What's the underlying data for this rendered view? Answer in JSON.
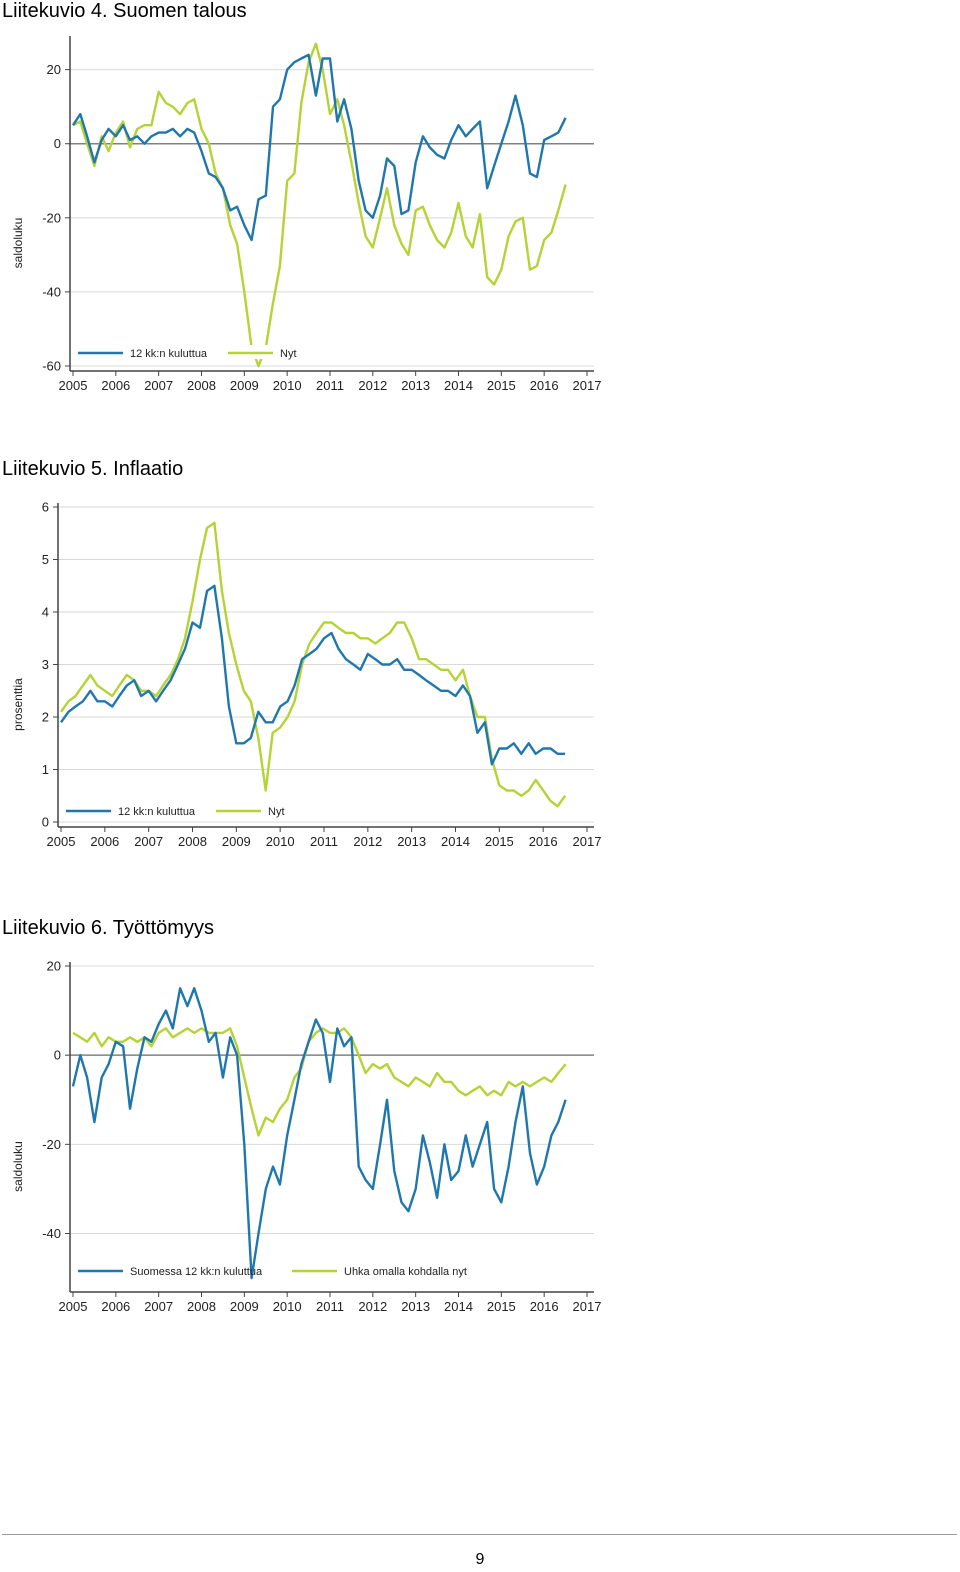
{
  "colors": {
    "series1": "#1f77ad",
    "series2": "#b5d334",
    "grid": "#d9d9d9",
    "zero": "#808080",
    "axis": "#444444"
  },
  "page_number": "9",
  "chart_data": [
    {
      "type": "line",
      "title": "Liitekuvio 4. Suomen talous",
      "ylabel": "saldoluku",
      "xlim": [
        2005,
        2017
      ],
      "ylim": [
        -60,
        28
      ],
      "xticks": [
        "2005",
        "2006",
        "2007",
        "2008",
        "2009",
        "2010",
        "2011",
        "2012",
        "2013",
        "2014",
        "2015",
        "2016",
        "2017"
      ],
      "yticks": [
        20,
        0,
        -20,
        -40,
        -60
      ],
      "legend_position": "bottom-left",
      "series": [
        {
          "name": "12 kk:n kuluttua",
          "color": "#1f77ad",
          "x": [
            2005.0,
            2005.17,
            2005.33,
            2005.5,
            2005.67,
            2005.83,
            2006.0,
            2006.17,
            2006.33,
            2006.5,
            2006.67,
            2006.83,
            2007.0,
            2007.17,
            2007.33,
            2007.5,
            2007.67,
            2007.83,
            2008.0,
            2008.17,
            2008.33,
            2008.5,
            2008.67,
            2008.83,
            2009.0,
            2009.17,
            2009.33,
            2009.5,
            2009.67,
            2009.83,
            2010.0,
            2010.17,
            2010.33,
            2010.5,
            2010.67,
            2010.83,
            2011.0,
            2011.17,
            2011.33,
            2011.5,
            2011.67,
            2011.83,
            2012.0,
            2012.17,
            2012.33,
            2012.5,
            2012.67,
            2012.83,
            2013.0,
            2013.17,
            2013.33,
            2013.5,
            2013.67,
            2013.83,
            2014.0,
            2014.17,
            2014.33,
            2014.5,
            2014.67,
            2014.83,
            2015.0,
            2015.17,
            2015.33,
            2015.5,
            2015.67,
            2015.83,
            2016.0,
            2016.17,
            2016.33,
            2016.5
          ],
          "y": [
            5,
            8,
            2,
            -5,
            1,
            4,
            2,
            5,
            1,
            2,
            0,
            2,
            3,
            3,
            4,
            2,
            4,
            3,
            -2,
            -8,
            -9,
            -12,
            -18,
            -17,
            -22,
            -26,
            -15,
            -14,
            10,
            12,
            20,
            22,
            23,
            24,
            13,
            23,
            23,
            6,
            12,
            4,
            -10,
            -18,
            -20,
            -14,
            -4,
            -6,
            -19,
            -18,
            -5,
            2,
            -1,
            -3,
            -4,
            1,
            5,
            2,
            4,
            6,
            -12,
            -6,
            0,
            6,
            13,
            5,
            -8,
            -9,
            1,
            2,
            3,
            7
          ]
        },
        {
          "name": "Nyt",
          "color": "#b5d334",
          "x": [
            2005.0,
            2005.17,
            2005.33,
            2005.5,
            2005.67,
            2005.83,
            2006.0,
            2006.17,
            2006.33,
            2006.5,
            2006.67,
            2006.83,
            2007.0,
            2007.17,
            2007.33,
            2007.5,
            2007.67,
            2007.83,
            2008.0,
            2008.17,
            2008.33,
            2008.5,
            2008.67,
            2008.83,
            2009.0,
            2009.17,
            2009.33,
            2009.5,
            2009.67,
            2009.83,
            2010.0,
            2010.17,
            2010.33,
            2010.5,
            2010.67,
            2010.83,
            2011.0,
            2011.17,
            2011.33,
            2011.5,
            2011.67,
            2011.83,
            2012.0,
            2012.17,
            2012.33,
            2012.5,
            2012.67,
            2012.83,
            2013.0,
            2013.17,
            2013.33,
            2013.5,
            2013.67,
            2013.83,
            2014.0,
            2014.17,
            2014.33,
            2014.5,
            2014.67,
            2014.83,
            2015.0,
            2015.17,
            2015.33,
            2015.5,
            2015.67,
            2015.83,
            2016.0,
            2016.17,
            2016.33,
            2016.5
          ],
          "y": [
            5,
            6,
            0,
            -6,
            2,
            -2,
            3,
            6,
            -1,
            4,
            5,
            5,
            14,
            11,
            10,
            8,
            11,
            12,
            4,
            0,
            -8,
            -12,
            -22,
            -27,
            -40,
            -55,
            -60,
            -55,
            -43,
            -33,
            -10,
            -8,
            11,
            22,
            27,
            20,
            8,
            12,
            5,
            -5,
            -16,
            -25,
            -28,
            -20,
            -12,
            -22,
            -27,
            -30,
            -18,
            -17,
            -22,
            -26,
            -28,
            -24,
            -16,
            -25,
            -28,
            -19,
            -36,
            -38,
            -34,
            -25,
            -21,
            -20,
            -34,
            -33,
            -26,
            -24,
            -18,
            -11
          ]
        }
      ]
    },
    {
      "type": "line",
      "title": "Liitekuvio 5. Inflaatio",
      "ylabel": "prosenttia",
      "xlim": [
        2005,
        2017
      ],
      "ylim": [
        0,
        6
      ],
      "xticks": [
        "2005",
        "2006",
        "2007",
        "2008",
        "2009",
        "2010",
        "2011",
        "2012",
        "2013",
        "2014",
        "2015",
        "2016",
        "2017"
      ],
      "yticks": [
        6,
        5,
        4,
        3,
        2,
        1,
        0
      ],
      "legend_position": "bottom-left",
      "series": [
        {
          "name": "12 kk:n kuluttua",
          "color": "#1f77ad",
          "x": [
            2005.0,
            2005.17,
            2005.33,
            2005.5,
            2005.67,
            2005.83,
            2006.0,
            2006.17,
            2006.33,
            2006.5,
            2006.67,
            2006.83,
            2007.0,
            2007.17,
            2007.33,
            2007.5,
            2007.67,
            2007.83,
            2008.0,
            2008.17,
            2008.33,
            2008.5,
            2008.67,
            2008.83,
            2009.0,
            2009.17,
            2009.33,
            2009.5,
            2009.67,
            2009.83,
            2010.0,
            2010.17,
            2010.33,
            2010.5,
            2010.67,
            2010.83,
            2011.0,
            2011.17,
            2011.33,
            2011.5,
            2011.67,
            2011.83,
            2012.0,
            2012.17,
            2012.33,
            2012.5,
            2012.67,
            2012.83,
            2013.0,
            2013.17,
            2013.33,
            2013.5,
            2013.67,
            2013.83,
            2014.0,
            2014.17,
            2014.33,
            2014.5,
            2014.67,
            2014.83,
            2015.0,
            2015.17,
            2015.33,
            2015.5,
            2015.67,
            2015.83,
            2016.0,
            2016.17,
            2016.33,
            2016.5
          ],
          "y": [
            1.9,
            2.1,
            2.2,
            2.3,
            2.5,
            2.3,
            2.3,
            2.2,
            2.4,
            2.6,
            2.7,
            2.4,
            2.5,
            2.3,
            2.5,
            2.7,
            3.0,
            3.3,
            3.8,
            3.7,
            4.4,
            4.5,
            3.5,
            2.2,
            1.5,
            1.5,
            1.6,
            2.1,
            1.9,
            1.9,
            2.2,
            2.3,
            2.6,
            3.1,
            3.2,
            3.3,
            3.5,
            3.6,
            3.3,
            3.1,
            3.0,
            2.9,
            3.2,
            3.1,
            3.0,
            3.0,
            3.1,
            2.9,
            2.9,
            2.8,
            2.7,
            2.6,
            2.5,
            2.5,
            2.4,
            2.6,
            2.4,
            1.7,
            1.9,
            1.1,
            1.4,
            1.4,
            1.5,
            1.3,
            1.5,
            1.3,
            1.4,
            1.4,
            1.3,
            1.3
          ]
        },
        {
          "name": "Nyt",
          "color": "#b5d334",
          "x": [
            2005.0,
            2005.17,
            2005.33,
            2005.5,
            2005.67,
            2005.83,
            2006.0,
            2006.17,
            2006.33,
            2006.5,
            2006.67,
            2006.83,
            2007.0,
            2007.17,
            2007.33,
            2007.5,
            2007.67,
            2007.83,
            2008.0,
            2008.17,
            2008.33,
            2008.5,
            2008.67,
            2008.83,
            2009.0,
            2009.17,
            2009.33,
            2009.5,
            2009.67,
            2009.83,
            2010.0,
            2010.17,
            2010.33,
            2010.5,
            2010.67,
            2010.83,
            2011.0,
            2011.17,
            2011.33,
            2011.5,
            2011.67,
            2011.83,
            2012.0,
            2012.17,
            2012.33,
            2012.5,
            2012.67,
            2012.83,
            2013.0,
            2013.17,
            2013.33,
            2013.5,
            2013.67,
            2013.83,
            2014.0,
            2014.17,
            2014.33,
            2014.5,
            2014.67,
            2014.83,
            2015.0,
            2015.17,
            2015.33,
            2015.5,
            2015.67,
            2015.83,
            2016.0,
            2016.17,
            2016.33,
            2016.5
          ],
          "y": [
            2.1,
            2.3,
            2.4,
            2.6,
            2.8,
            2.6,
            2.5,
            2.4,
            2.6,
            2.8,
            2.7,
            2.5,
            2.5,
            2.4,
            2.6,
            2.8,
            3.1,
            3.5,
            4.2,
            5.0,
            5.6,
            5.7,
            4.4,
            3.6,
            3.0,
            2.5,
            2.3,
            1.6,
            0.6,
            1.7,
            1.8,
            2.0,
            2.3,
            3.0,
            3.4,
            3.6,
            3.8,
            3.8,
            3.7,
            3.6,
            3.6,
            3.5,
            3.5,
            3.4,
            3.5,
            3.6,
            3.8,
            3.8,
            3.5,
            3.1,
            3.1,
            3.0,
            2.9,
            2.9,
            2.7,
            2.9,
            2.4,
            2.0,
            2.0,
            1.2,
            0.7,
            0.6,
            0.6,
            0.5,
            0.6,
            0.8,
            0.6,
            0.4,
            0.3,
            0.5
          ]
        }
      ]
    },
    {
      "type": "line",
      "title": "Liitekuvio 6. Työttömyys",
      "ylabel": "saldoluku",
      "xlim": [
        2005,
        2017
      ],
      "ylim": [
        -52,
        20
      ],
      "xticks": [
        "2005",
        "2006",
        "2007",
        "2008",
        "2009",
        "2010",
        "2011",
        "2012",
        "2013",
        "2014",
        "2015",
        "2016",
        "2017"
      ],
      "yticks": [
        20,
        0,
        -20,
        -40
      ],
      "legend_position": "bottom-left",
      "series": [
        {
          "name": "Suomessa 12 kk:n kuluttua",
          "color": "#1f77ad",
          "x": [
            2005.0,
            2005.17,
            2005.33,
            2005.5,
            2005.67,
            2005.83,
            2006.0,
            2006.17,
            2006.33,
            2006.5,
            2006.67,
            2006.83,
            2007.0,
            2007.17,
            2007.33,
            2007.5,
            2007.67,
            2007.83,
            2008.0,
            2008.17,
            2008.33,
            2008.5,
            2008.67,
            2008.83,
            2009.0,
            2009.17,
            2009.33,
            2009.5,
            2009.67,
            2009.83,
            2010.0,
            2010.17,
            2010.33,
            2010.5,
            2010.67,
            2010.83,
            2011.0,
            2011.17,
            2011.33,
            2011.5,
            2011.67,
            2011.83,
            2012.0,
            2012.17,
            2012.33,
            2012.5,
            2012.67,
            2012.83,
            2013.0,
            2013.17,
            2013.33,
            2013.5,
            2013.67,
            2013.83,
            2014.0,
            2014.17,
            2014.33,
            2014.5,
            2014.67,
            2014.83,
            2015.0,
            2015.17,
            2015.33,
            2015.5,
            2015.67,
            2015.83,
            2016.0,
            2016.17,
            2016.33,
            2016.5
          ],
          "y": [
            -7,
            0,
            -5,
            -15,
            -5,
            -2,
            3,
            2,
            -12,
            -3,
            4,
            3,
            7,
            10,
            6,
            15,
            11,
            15,
            10,
            3,
            5,
            -5,
            4,
            0,
            -20,
            -50,
            -40,
            -30,
            -25,
            -29,
            -18,
            -10,
            -2,
            3,
            8,
            5,
            -6,
            6,
            2,
            4,
            -25,
            -28,
            -30,
            -20,
            -10,
            -26,
            -33,
            -35,
            -30,
            -18,
            -24,
            -32,
            -20,
            -28,
            -26,
            -18,
            -25,
            -20,
            -15,
            -30,
            -33,
            -25,
            -15,
            -7,
            -22,
            -29,
            -25,
            -18,
            -15,
            -10
          ]
        },
        {
          "name": "Uhka omalla kohdalla nyt",
          "color": "#b5d334",
          "x": [
            2005.0,
            2005.17,
            2005.33,
            2005.5,
            2005.67,
            2005.83,
            2006.0,
            2006.17,
            2006.33,
            2006.5,
            2006.67,
            2006.83,
            2007.0,
            2007.17,
            2007.33,
            2007.5,
            2007.67,
            2007.83,
            2008.0,
            2008.17,
            2008.33,
            2008.5,
            2008.67,
            2008.83,
            2009.0,
            2009.17,
            2009.33,
            2009.5,
            2009.67,
            2009.83,
            2010.0,
            2010.17,
            2010.33,
            2010.5,
            2010.67,
            2010.83,
            2011.0,
            2011.17,
            2011.33,
            2011.5,
            2011.67,
            2011.83,
            2012.0,
            2012.17,
            2012.33,
            2012.5,
            2012.67,
            2012.83,
            2013.0,
            2013.17,
            2013.33,
            2013.5,
            2013.67,
            2013.83,
            2014.0,
            2014.17,
            2014.33,
            2014.5,
            2014.67,
            2014.83,
            2015.0,
            2015.17,
            2015.33,
            2015.5,
            2015.67,
            2015.83,
            2016.0,
            2016.17,
            2016.33,
            2016.5
          ],
          "y": [
            5,
            4,
            3,
            5,
            2,
            4,
            3,
            3,
            4,
            3,
            4,
            2,
            5,
            6,
            4,
            5,
            6,
            5,
            6,
            5,
            5,
            5,
            6,
            2,
            -5,
            -12,
            -18,
            -14,
            -15,
            -12,
            -10,
            -5,
            -3,
            3,
            5,
            6,
            5,
            5,
            6,
            4,
            0,
            -4,
            -2,
            -3,
            -2,
            -5,
            -6,
            -7,
            -5,
            -6,
            -7,
            -4,
            -6,
            -6,
            -8,
            -9,
            -8,
            -7,
            -9,
            -8,
            -9,
            -6,
            -7,
            -6,
            -7,
            -6,
            -5,
            -6,
            -4,
            -2
          ]
        }
      ]
    }
  ]
}
